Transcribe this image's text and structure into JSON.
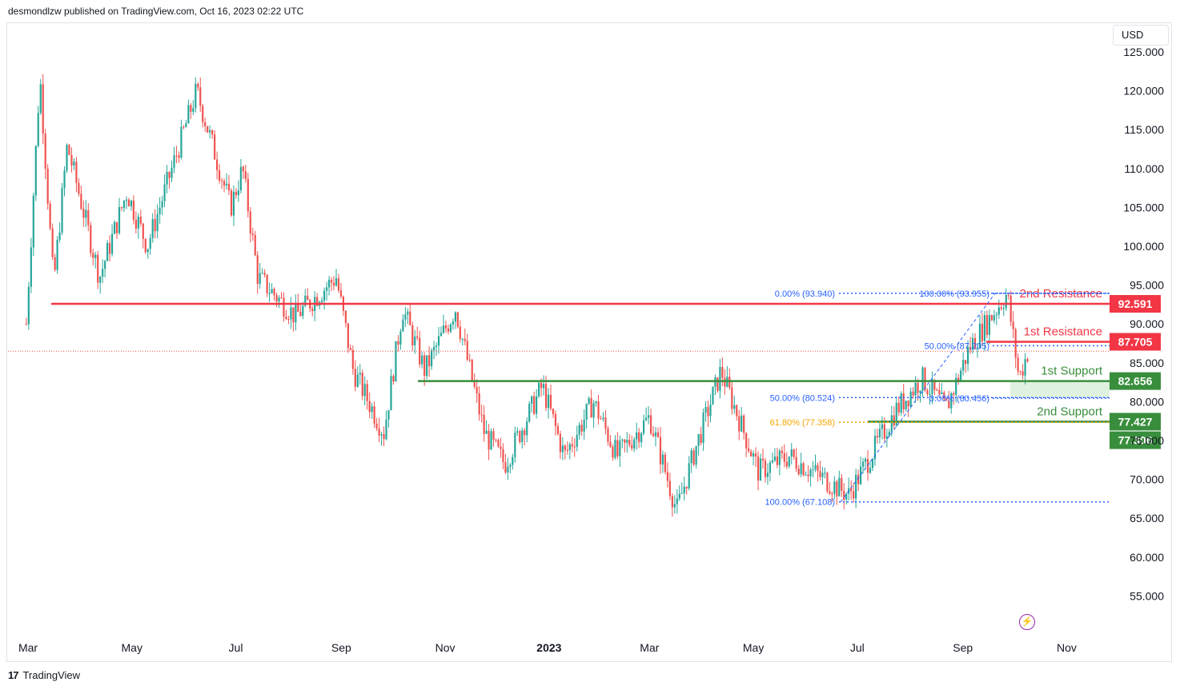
{
  "header": {
    "publisher": "desmondlzw published on TradingView.com, Oct 16, 2023 02:22 UTC"
  },
  "currency": "USD",
  "footer": {
    "brand": "TradingView"
  },
  "colors": {
    "up": "#26a69a",
    "down": "#ef5350",
    "resistance": "#f23645",
    "support": "#388e3c",
    "fib": "#2962ff",
    "fib_golden": "#f7a600"
  },
  "chart_data": {
    "type": "candlestick",
    "title": "",
    "x_labels": [
      "Mar",
      "May",
      "Jul",
      "Sep",
      "Nov",
      "2023",
      "Mar",
      "May",
      "Jul",
      "Sep",
      "Nov"
    ],
    "y_ticks": [
      "125.000",
      "120.000",
      "115.000",
      "110.000",
      "105.000",
      "100.000",
      "95.000",
      "90.000",
      "85.000",
      "80.000",
      "75.000",
      "70.000",
      "65.000",
      "60.000",
      "55.000"
    ],
    "ylim": [
      51,
      128
    ],
    "price_path": [
      {
        "t": "2022-02-28",
        "v": 90
      },
      {
        "t": "2022-03-08",
        "v": 122
      },
      {
        "t": "2022-03-16",
        "v": 95
      },
      {
        "t": "2022-03-24",
        "v": 113
      },
      {
        "t": "2022-04-12",
        "v": 96
      },
      {
        "t": "2022-04-28",
        "v": 107
      },
      {
        "t": "2022-05-10",
        "v": 100
      },
      {
        "t": "2022-06-08",
        "v": 120
      },
      {
        "t": "2022-06-28",
        "v": 105
      },
      {
        "t": "2022-07-05",
        "v": 110
      },
      {
        "t": "2022-07-14",
        "v": 96
      },
      {
        "t": "2022-08-05",
        "v": 91
      },
      {
        "t": "2022-08-29",
        "v": 96
      },
      {
        "t": "2022-09-08",
        "v": 84
      },
      {
        "t": "2022-09-26",
        "v": 76
      },
      {
        "t": "2022-10-07",
        "v": 92
      },
      {
        "t": "2022-10-20",
        "v": 84
      },
      {
        "t": "2022-11-07",
        "v": 92
      },
      {
        "t": "2022-11-24",
        "v": 76
      },
      {
        "t": "2022-12-06",
        "v": 72
      },
      {
        "t": "2022-12-28",
        "v": 82
      },
      {
        "t": "2023-01-10",
        "v": 73
      },
      {
        "t": "2023-01-27",
        "v": 80
      },
      {
        "t": "2023-02-10",
        "v": 73
      },
      {
        "t": "2023-03-01",
        "v": 78
      },
      {
        "t": "2023-03-17",
        "v": 66
      },
      {
        "t": "2023-03-28",
        "v": 74
      },
      {
        "t": "2023-04-12",
        "v": 84
      },
      {
        "t": "2023-05-04",
        "v": 71
      },
      {
        "t": "2023-05-22",
        "v": 73
      },
      {
        "t": "2023-06-12",
        "v": 70
      },
      {
        "t": "2023-06-26",
        "v": 68
      },
      {
        "t": "2023-07-24",
        "v": 79
      },
      {
        "t": "2023-08-08",
        "v": 83
      },
      {
        "t": "2023-08-22",
        "v": 79
      },
      {
        "t": "2023-09-05",
        "v": 87
      },
      {
        "t": "2023-09-27",
        "v": 93.9
      },
      {
        "t": "2023-10-04",
        "v": 83
      },
      {
        "t": "2023-10-10",
        "v": 87
      }
    ],
    "levels": [
      {
        "label": "2nd Resistance",
        "value": 92.591,
        "badge": "92.591",
        "kind": "resistance"
      },
      {
        "label": "1st Resistance",
        "value": 87.705,
        "badge": "87.705",
        "kind": "resistance"
      },
      {
        "label": "1st Support",
        "value": 82.656,
        "badge": "82.656",
        "kind": "support"
      },
      {
        "label": "2nd Support",
        "value": 77.427,
        "badge": "77.427",
        "kind": "support"
      }
    ],
    "extra_badge": {
      "value": 77.306,
      "badge": "77.306"
    },
    "fib_left": [
      {
        "label": "0.00% (93.940)",
        "value": 93.94
      },
      {
        "label": "50.00% (80.524)",
        "value": 80.524
      },
      {
        "label": "61.80% (77.358)",
        "value": 77.358
      },
      {
        "label": "100.00% (67.108)",
        "value": 67.108
      }
    ],
    "fib_right": [
      {
        "label": "100.00% (93.955)",
        "value": 93.955
      },
      {
        "label": "50.00% (87.205)",
        "value": 87.205
      },
      {
        "label": "0.00% (80.456)",
        "value": 80.456
      }
    ],
    "last_price": 86.5
  }
}
